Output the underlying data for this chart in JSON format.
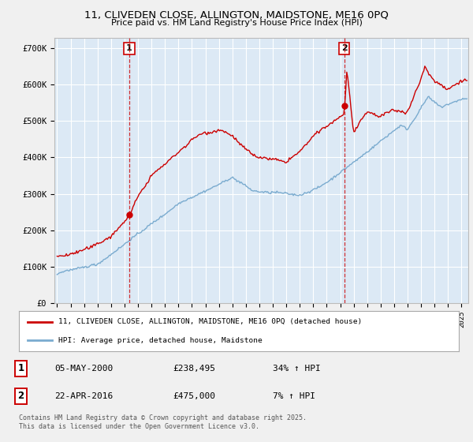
{
  "title": "11, CLIVEDEN CLOSE, ALLINGTON, MAIDSTONE, ME16 0PQ",
  "subtitle": "Price paid vs. HM Land Registry's House Price Index (HPI)",
  "ylabel_ticks": [
    "£0",
    "£100K",
    "£200K",
    "£300K",
    "£400K",
    "£500K",
    "£600K",
    "£700K"
  ],
  "ytick_values": [
    0,
    100000,
    200000,
    300000,
    400000,
    500000,
    600000,
    700000
  ],
  "ylim": [
    0,
    730000
  ],
  "xlim_start": 1994.8,
  "xlim_end": 2025.5,
  "background_color": "#dce9f5",
  "fig_color": "#f0f0f0",
  "grid_color": "#ffffff",
  "red_line_color": "#cc0000",
  "blue_line_color": "#7aabcf",
  "sale1_year": 2000.35,
  "sale1_price": 238495,
  "sale2_year": 2016.31,
  "sale2_price": 475000,
  "legend_label_red": "11, CLIVEDEN CLOSE, ALLINGTON, MAIDSTONE, ME16 0PQ (detached house)",
  "legend_label_blue": "HPI: Average price, detached house, Maidstone",
  "footer_text": "Contains HM Land Registry data © Crown copyright and database right 2025.\nThis data is licensed under the Open Government Licence v3.0.",
  "table_rows": [
    {
      "num": "1",
      "date": "05-MAY-2000",
      "price": "£238,495",
      "hpi": "34% ↑ HPI"
    },
    {
      "num": "2",
      "date": "22-APR-2016",
      "price": "£475,000",
      "hpi": "7% ↑ HPI"
    }
  ]
}
